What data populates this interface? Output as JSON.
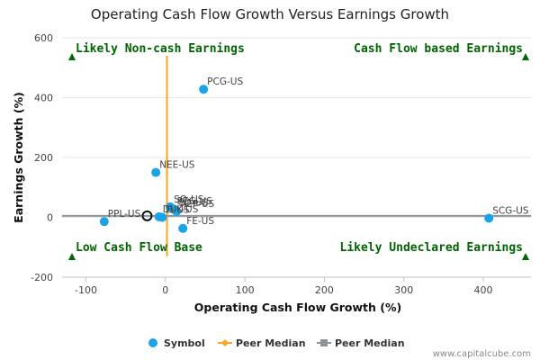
{
  "chart_data": {
    "type": "scatter",
    "title": "Operating Cash Flow Growth Versus Earnings Growth",
    "xlabel": "Operating Cash Flow Growth (%)",
    "ylabel": "Earnings Growth (%)",
    "xlim": [
      -130,
      460
    ],
    "ylim": [
      -200,
      600
    ],
    "xticks": [
      -100,
      0,
      100,
      200,
      300,
      400
    ],
    "yticks": [
      -200,
      0,
      200,
      400,
      600
    ],
    "points": [
      {
        "label": "PCG-US",
        "x": 48,
        "y": 428
      },
      {
        "label": "NEE-US",
        "x": -12,
        "y": 150
      },
      {
        "label": "SO-US",
        "x": 6,
        "y": 35
      },
      {
        "label": "PEG-US",
        "x": 10,
        "y": 28
      },
      {
        "label": "ED-US",
        "x": 12,
        "y": 24
      },
      {
        "label": "DUK-US",
        "x": -8,
        "y": 2
      },
      {
        "label": "D-US",
        "x": -4,
        "y": 0
      },
      {
        "label": "AEP-US",
        "x": 14,
        "y": 20
      },
      {
        "label": "FE-US",
        "x": 22,
        "y": -37
      },
      {
        "label": "PPL-US",
        "x": -77,
        "y": -14
      },
      {
        "label": "SCG-US",
        "x": 407,
        "y": -3
      }
    ],
    "highlight_point": {
      "x": -23,
      "y": 5
    },
    "peer_median": {
      "x": 2,
      "y": 5,
      "x_range": [
        -130,
        460
      ],
      "y_range": [
        -130,
        540
      ]
    },
    "quadrant_labels": {
      "top_left": "Likely Non-cash Earnings",
      "top_right": "Cash Flow based Earnings",
      "bottom_left": "Low Cash Flow Base",
      "bottom_right": "Likely Undeclared Earnings"
    },
    "legend": {
      "placement": "bottom-center",
      "items": [
        {
          "label": "Symbol",
          "color": "#1aa3e8"
        },
        {
          "label": "Peer Median",
          "color": "#f5a623"
        },
        {
          "label": "Peer Median",
          "color": "#8c9399"
        }
      ]
    },
    "colors": {
      "point": "#1aa3e8",
      "vertical_median": "#f5a623",
      "horizontal_median": "#8c9399",
      "quadrant_text": "#006400"
    },
    "credit": "www.capitalcube.com"
  }
}
